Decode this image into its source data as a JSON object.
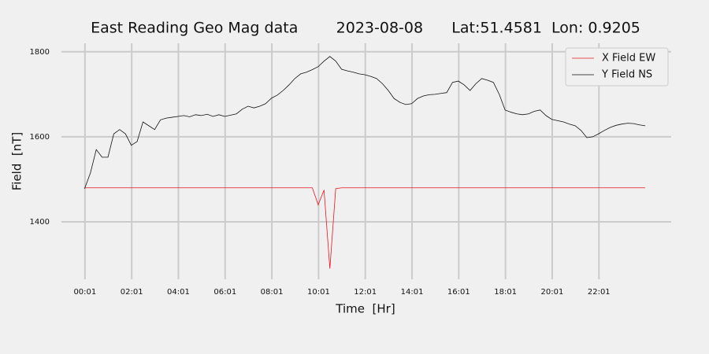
{
  "chart_data": {
    "type": "line",
    "title": "East Reading Geo Mag data        2023-08-08      Lat:51.4581  Lon: 0.9205",
    "x_label": "Time  [Hr]",
    "y_label": "Field  [nT]",
    "x": [
      0,
      0.25,
      0.5,
      0.75,
      1,
      1.25,
      1.5,
      1.75,
      2,
      2.25,
      2.5,
      2.75,
      3,
      3.25,
      3.5,
      3.75,
      4,
      4.25,
      4.5,
      4.75,
      5,
      5.25,
      5.5,
      5.75,
      6,
      6.25,
      6.5,
      6.75,
      7,
      7.25,
      7.5,
      7.75,
      8,
      8.25,
      8.5,
      8.75,
      9,
      9.25,
      9.5,
      9.75,
      10,
      10.25,
      10.5,
      10.75,
      11,
      11.25,
      11.5,
      11.75,
      12,
      12.25,
      12.5,
      12.75,
      13,
      13.25,
      13.5,
      13.75,
      14,
      14.25,
      14.5,
      14.75,
      15,
      15.25,
      15.5,
      15.75,
      16,
      16.25,
      16.5,
      16.75,
      17,
      17.25,
      17.5,
      17.75,
      18,
      18.25,
      18.5,
      18.75,
      19,
      19.25,
      19.5,
      19.75,
      20,
      20.25,
      20.5,
      20.75,
      21,
      21.25,
      21.5,
      21.75,
      22,
      22.25,
      22.5,
      22.75,
      23,
      23.25,
      23.5,
      23.75,
      24
    ],
    "series": [
      {
        "name": "X Field EW",
        "color": "#e8141c",
        "values": [
          1480,
          1480,
          1480,
          1480,
          1480,
          1480,
          1480,
          1480,
          1480,
          1480,
          1480,
          1480,
          1480,
          1480,
          1480,
          1480,
          1480,
          1480,
          1480,
          1480,
          1480,
          1480,
          1480,
          1480,
          1480,
          1480,
          1480,
          1480,
          1480,
          1480,
          1480,
          1480,
          1480,
          1480,
          1480,
          1480,
          1480,
          1480,
          1480,
          1480,
          1440,
          1475,
          1290,
          1478,
          1480,
          1480,
          1480,
          1480,
          1480,
          1480,
          1480,
          1480,
          1480,
          1480,
          1480,
          1480,
          1480,
          1480,
          1480,
          1480,
          1480,
          1480,
          1480,
          1480,
          1480,
          1480,
          1480,
          1480,
          1480,
          1480,
          1480,
          1480,
          1480,
          1480,
          1480,
          1480,
          1480,
          1480,
          1480,
          1480,
          1480,
          1480,
          1480,
          1480,
          1480,
          1480,
          1480,
          1480,
          1480,
          1480,
          1480,
          1480,
          1480,
          1480,
          1480,
          1480,
          1480
        ]
      },
      {
        "name": "Y Field NS",
        "color": "#111111",
        "values": [
          1478,
          1515,
          1570,
          1552,
          1552,
          1607,
          1617,
          1607,
          1580,
          1589,
          1635,
          1626,
          1617,
          1640,
          1644,
          1646,
          1648,
          1650,
          1647,
          1652,
          1650,
          1653,
          1648,
          1652,
          1648,
          1651,
          1654,
          1665,
          1672,
          1668,
          1672,
          1678,
          1691,
          1698,
          1709,
          1722,
          1737,
          1748,
          1752,
          1758,
          1765,
          1778,
          1789,
          1778,
          1759,
          1755,
          1752,
          1748,
          1746,
          1742,
          1737,
          1725,
          1709,
          1690,
          1681,
          1676,
          1678,
          1690,
          1696,
          1699,
          1700,
          1702,
          1704,
          1728,
          1731,
          1722,
          1709,
          1725,
          1737,
          1733,
          1728,
          1700,
          1663,
          1658,
          1654,
          1652,
          1654,
          1660,
          1663,
          1650,
          1641,
          1638,
          1635,
          1630,
          1626,
          1615,
          1598,
          1600,
          1607,
          1615,
          1622,
          1627,
          1630,
          1632,
          1631,
          1628,
          1626
        ]
      }
    ],
    "xlim": [
      -0.99,
      25.11
    ],
    "ylim": [
      1265,
      1820
    ],
    "xticks": [
      {
        "value": 0.0167,
        "label": "00:01"
      },
      {
        "value": 2.0167,
        "label": "02:01"
      },
      {
        "value": 4.0167,
        "label": "04:01"
      },
      {
        "value": 6.0167,
        "label": "06:01"
      },
      {
        "value": 8.0167,
        "label": "08:01"
      },
      {
        "value": 10.0167,
        "label": "10:01"
      },
      {
        "value": 12.0167,
        "label": "12:01"
      },
      {
        "value": 14.0167,
        "label": "14:01"
      },
      {
        "value": 16.0167,
        "label": "16:01"
      },
      {
        "value": 18.0167,
        "label": "18:01"
      },
      {
        "value": 20.0167,
        "label": "20:01"
      },
      {
        "value": 22.0167,
        "label": "22:01"
      }
    ],
    "yticks": [
      1400,
      1600,
      1800
    ],
    "grid": true,
    "legend": "upper right"
  }
}
